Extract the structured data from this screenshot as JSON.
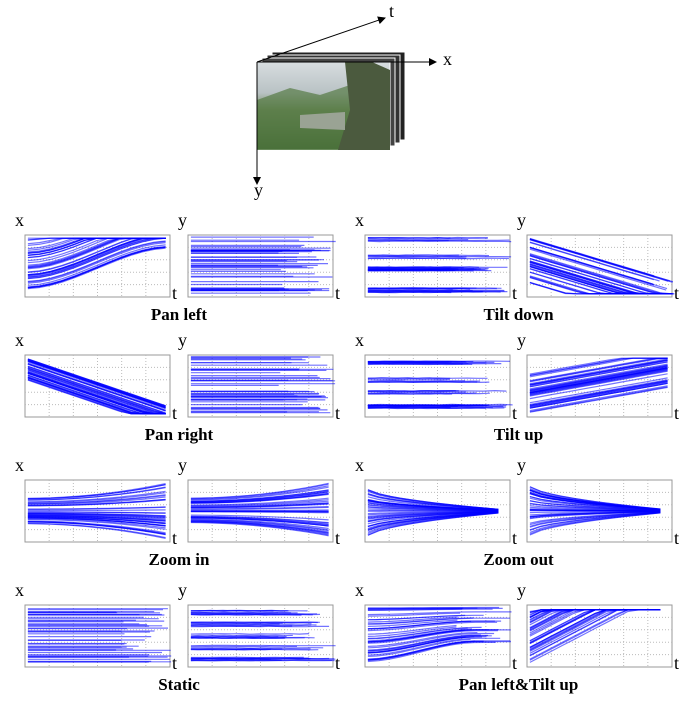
{
  "header": {
    "t_label": "t",
    "x_label": "x",
    "y_label": "y"
  },
  "panels": [
    {
      "caption": "Pan left",
      "plots": [
        {
          "axis": "x",
          "time": "t"
        },
        {
          "axis": "y",
          "time": "t"
        }
      ]
    },
    {
      "caption": "Tilt down",
      "plots": [
        {
          "axis": "x",
          "time": "t"
        },
        {
          "axis": "y",
          "time": "t"
        }
      ]
    },
    {
      "caption": "Pan right",
      "plots": [
        {
          "axis": "x",
          "time": "t"
        },
        {
          "axis": "y",
          "time": "t"
        }
      ]
    },
    {
      "caption": "Tilt up",
      "plots": [
        {
          "axis": "x",
          "time": "t"
        },
        {
          "axis": "y",
          "time": "t"
        }
      ]
    },
    {
      "caption": "Zoom in",
      "plots": [
        {
          "axis": "x",
          "time": "t"
        },
        {
          "axis": "y",
          "time": "t"
        }
      ]
    },
    {
      "caption": "Zoom out",
      "plots": [
        {
          "axis": "x",
          "time": "t"
        },
        {
          "axis": "y",
          "time": "t"
        }
      ]
    },
    {
      "caption": "Static",
      "plots": [
        {
          "axis": "x",
          "time": "t"
        },
        {
          "axis": "y",
          "time": "t"
        }
      ]
    },
    {
      "caption": "Pan left&Tilt up",
      "plots": [
        {
          "axis": "x",
          "time": "t"
        },
        {
          "axis": "y",
          "time": "t"
        }
      ]
    }
  ]
}
